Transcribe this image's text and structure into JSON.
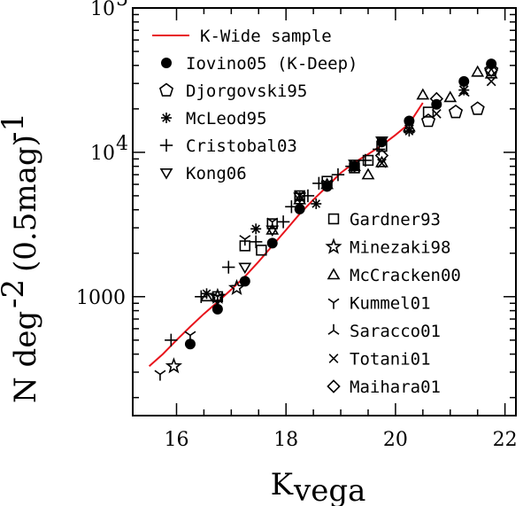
{
  "chart_data": {
    "type": "scatter",
    "title": "",
    "xlabel": "K",
    "xlabel_sub": "vega",
    "ylabel": "N deg",
    "ylabel_sup": "-2",
    "ylabel_tail": "(0.5mag)",
    "ylabel_tail_sup": "-1",
    "xlim": [
      15.2,
      22.2
    ],
    "ylim": [
      150,
      100000
    ],
    "yscale": "log",
    "x_ticks": [
      "16",
      "18",
      "20",
      "22"
    ],
    "y_ticks": [
      "1000",
      "10",
      "10"
    ],
    "y_tick_sups": [
      "4",
      "5"
    ],
    "legend_placement": "top-left and lower-right",
    "series": [
      {
        "name": "K-Wide sample",
        "marker": "line",
        "color": "#e8141c",
        "points": [
          [
            15.5,
            330
          ],
          [
            15.75,
            400
          ],
          [
            16.0,
            500
          ],
          [
            16.25,
            620
          ],
          [
            16.5,
            760
          ],
          [
            16.75,
            920
          ],
          [
            17.0,
            1120
          ],
          [
            17.25,
            1380
          ],
          [
            17.5,
            1750
          ],
          [
            17.75,
            2250
          ],
          [
            18.0,
            2900
          ],
          [
            18.25,
            3750
          ],
          [
            18.5,
            4700
          ],
          [
            18.75,
            5800
          ],
          [
            19.0,
            7200
          ],
          [
            19.25,
            8500
          ],
          [
            19.5,
            9700
          ],
          [
            19.75,
            11200
          ],
          [
            20.0,
            13200
          ],
          [
            20.25,
            15800
          ],
          [
            20.5,
            22000
          ]
        ]
      },
      {
        "name": "Iovino05 (K-Deep)",
        "marker": "filled-circle",
        "points": [
          [
            16.25,
            470
          ],
          [
            16.75,
            820
          ],
          [
            17.25,
            1280
          ],
          [
            17.75,
            2350
          ],
          [
            18.25,
            4050
          ],
          [
            18.75,
            5800
          ],
          [
            19.25,
            8000
          ],
          [
            19.75,
            11800
          ],
          [
            20.25,
            16500
          ],
          [
            20.75,
            21500
          ],
          [
            21.25,
            31000
          ],
          [
            21.75,
            41000
          ]
        ]
      },
      {
        "name": "Djorgovski95",
        "marker": "pentagon",
        "points": [
          [
            20.6,
            16500
          ],
          [
            21.1,
            19000
          ],
          [
            21.5,
            20000
          ],
          [
            21.75,
            37000
          ]
        ]
      },
      {
        "name": "McLeod95",
        "marker": "asterisk",
        "points": [
          [
            16.55,
            1050
          ],
          [
            17.45,
            2950
          ],
          [
            18.55,
            4400
          ],
          [
            19.25,
            7900
          ],
          [
            20.25,
            14000
          ],
          [
            21.25,
            27000
          ]
        ]
      },
      {
        "name": "Cristobal03",
        "marker": "plus",
        "points": [
          [
            15.9,
            500
          ],
          [
            16.45,
            1000
          ],
          [
            16.95,
            1600
          ],
          [
            17.45,
            2400
          ],
          [
            17.95,
            3300
          ],
          [
            18.1,
            4200
          ],
          [
            18.4,
            5000
          ],
          [
            18.6,
            6100
          ],
          [
            18.95,
            7000
          ],
          [
            19.2,
            8000
          ],
          [
            19.45,
            8800
          ],
          [
            19.7,
            10500
          ]
        ]
      },
      {
        "name": "Kong06",
        "marker": "triangle-down",
        "points": [
          [
            16.75,
            960
          ],
          [
            17.25,
            1600
          ],
          [
            17.75,
            2900
          ],
          [
            18.25,
            4900
          ],
          [
            18.75,
            5900
          ],
          [
            19.25,
            8300
          ],
          [
            19.75,
            12000
          ]
        ]
      },
      {
        "name": "Gardner93",
        "marker": "open-square",
        "points": [
          [
            16.75,
            1000
          ],
          [
            17.25,
            2250
          ],
          [
            17.55,
            2100
          ],
          [
            17.75,
            3200
          ],
          [
            18.25,
            5000
          ],
          [
            18.75,
            6300
          ],
          [
            19.25,
            7800
          ],
          [
            19.5,
            8800
          ],
          [
            19.75,
            11000
          ],
          [
            20.6,
            19000
          ]
        ]
      },
      {
        "name": "Minezaki98",
        "marker": "star",
        "points": [
          [
            15.95,
            330
          ],
          [
            16.75,
            1000
          ],
          [
            17.1,
            1150
          ]
        ]
      },
      {
        "name": "McCracken00",
        "marker": "open-triangle",
        "points": [
          [
            16.55,
            1000
          ],
          [
            17.75,
            2900
          ],
          [
            18.25,
            4700
          ],
          [
            18.75,
            6000
          ],
          [
            19.25,
            8000
          ],
          [
            19.5,
            7000
          ],
          [
            19.75,
            8500
          ],
          [
            20.25,
            15000
          ],
          [
            20.5,
            25000
          ],
          [
            21.0,
            24000
          ],
          [
            21.5,
            36000
          ],
          [
            21.75,
            35000
          ]
        ]
      },
      {
        "name": "Kummel01",
        "marker": "y-down",
        "points": [
          [
            15.7,
            290
          ],
          [
            16.25,
            540
          ],
          [
            16.75,
            1000
          ],
          [
            17.25,
            2500
          ],
          [
            17.75,
            3300
          ],
          [
            18.25,
            5100
          ],
          [
            18.75,
            6100
          ]
        ]
      },
      {
        "name": "Saracco01",
        "marker": "y-up",
        "points": [
          [
            18.25,
            4800
          ],
          [
            19.25,
            7800
          ],
          [
            20.25,
            14500
          ],
          [
            21.25,
            26000
          ]
        ]
      },
      {
        "name": "Totani01",
        "marker": "x-cross",
        "points": [
          [
            18.25,
            5000
          ],
          [
            19.25,
            8100
          ],
          [
            19.75,
            8400
          ],
          [
            20.25,
            14500
          ],
          [
            20.75,
            18500
          ],
          [
            21.25,
            27000
          ],
          [
            21.75,
            31000
          ]
        ]
      },
      {
        "name": "Maihara01",
        "marker": "open-diamond",
        "points": [
          [
            19.75,
            9500
          ],
          [
            20.75,
            23500
          ],
          [
            21.75,
            37000
          ]
        ]
      }
    ]
  }
}
